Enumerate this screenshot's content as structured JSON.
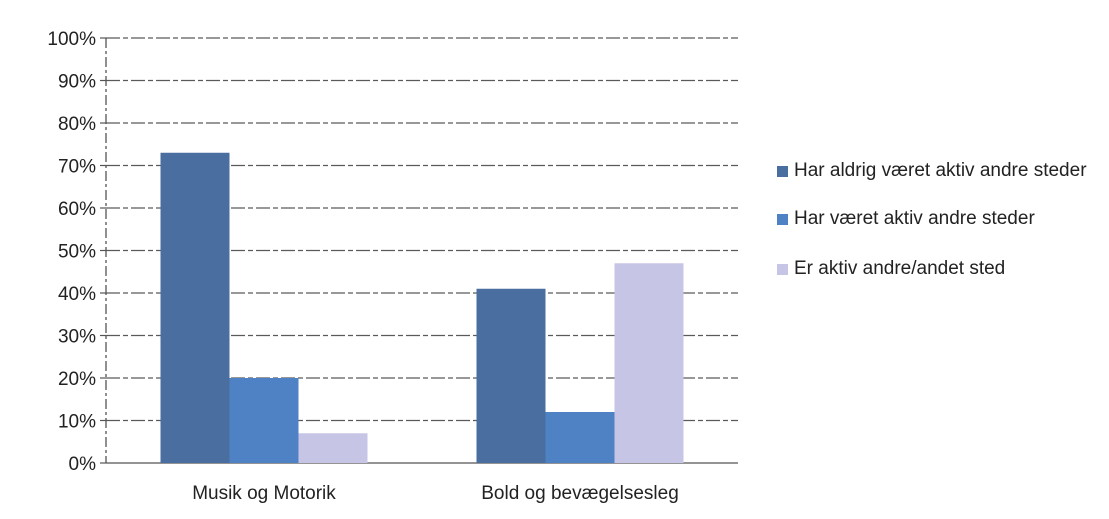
{
  "chart_data": {
    "type": "bar",
    "categories": [
      "Musik og Motorik",
      "Bold og bevægelsesleg"
    ],
    "series": [
      {
        "name": "Har aldrig været aktiv andre steder",
        "values": [
          73,
          41
        ],
        "color": "#4a6ea0"
      },
      {
        "name": "Har været aktiv andre steder",
        "values": [
          20,
          12
        ],
        "color": "#4f82c4"
      },
      {
        "name": "Er aktiv andre/andet sted",
        "values": [
          7,
          47
        ],
        "color": "#c7c5e6"
      }
    ],
    "ylim": [
      0,
      100
    ],
    "yticks": [
      "0%",
      "10%",
      "20%",
      "30%",
      "40%",
      "50%",
      "60%",
      "70%",
      "80%",
      "90%",
      "100%"
    ],
    "grid": true,
    "legend_position": "right",
    "title": "",
    "xlabel": "",
    "ylabel": ""
  }
}
